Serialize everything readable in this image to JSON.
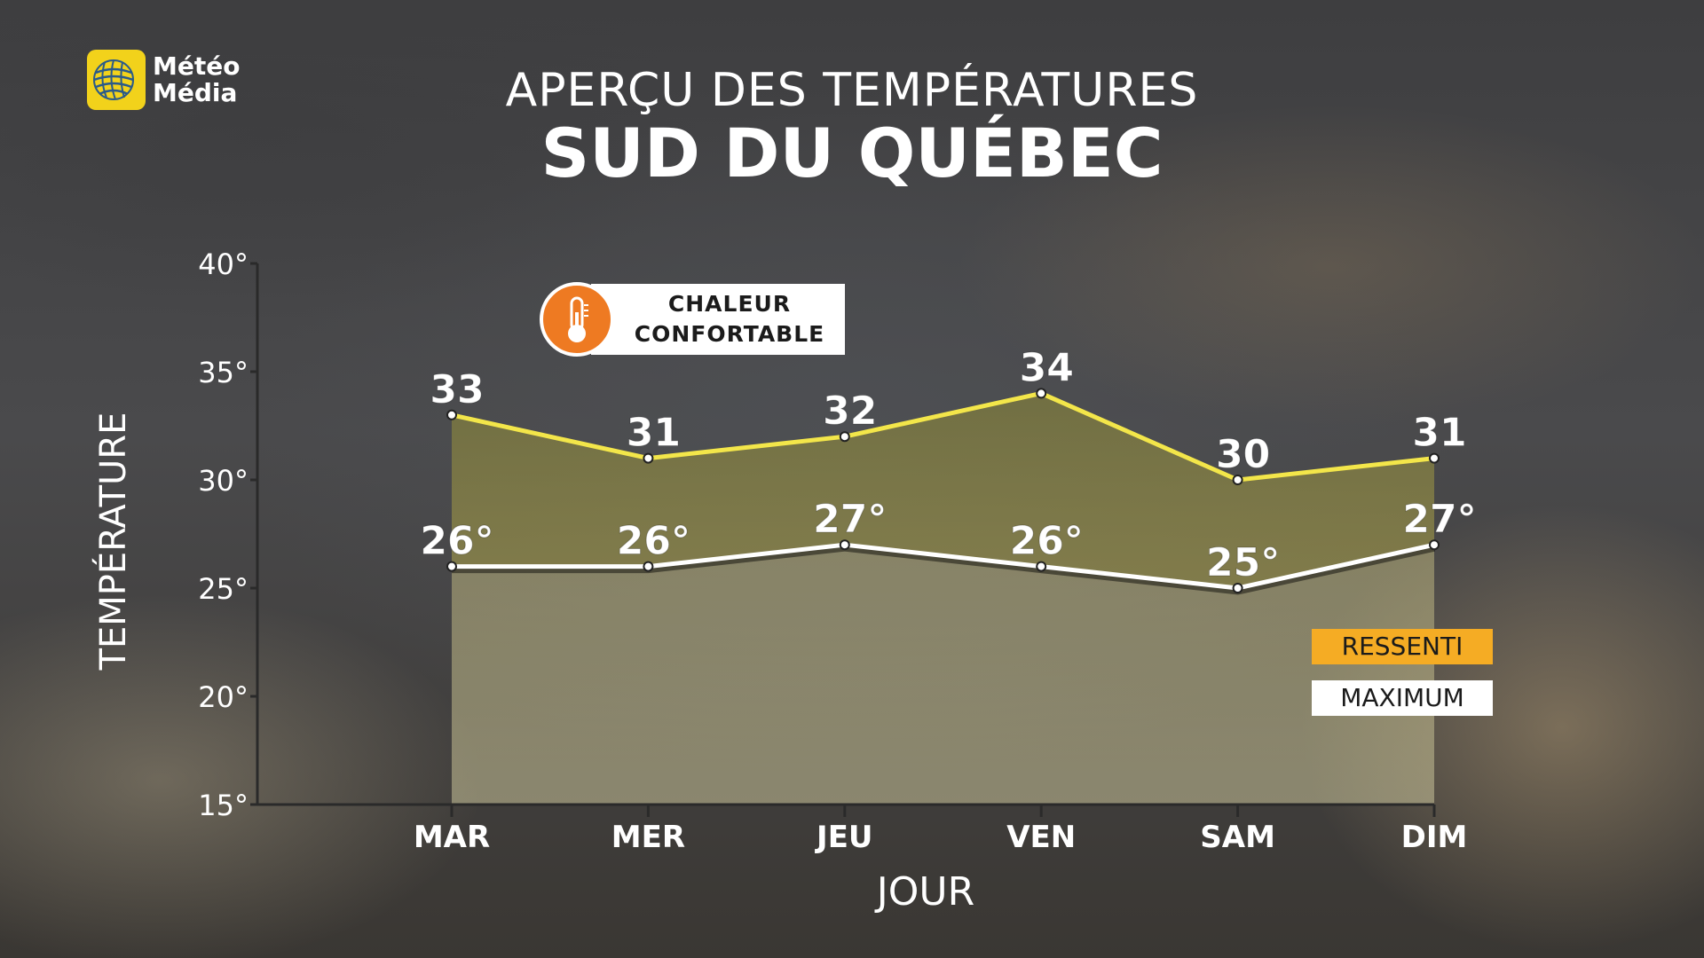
{
  "brand": {
    "logo_line1": "Météo",
    "logo_line2": "Média"
  },
  "header": {
    "title": "APERÇU DES TEMPÉRATURES",
    "subtitle": "SUD DU QUÉBEC"
  },
  "badge": {
    "line1": "CHALEUR",
    "line2": "CONFORTABLE",
    "icon": "thermometer-icon",
    "color": "#ee7a22"
  },
  "legend": {
    "ressenti": "RESSENTI",
    "maximum": "MAXIMUM",
    "ressenti_color": "#f5ac24",
    "maximum_color": "#ffffff"
  },
  "chart_data": {
    "type": "area",
    "xlabel": "JOUR",
    "ylabel": "TEMPÉRATURE",
    "categories": [
      "MAR",
      "MER",
      "JEU",
      "VEN",
      "SAM",
      "DIM"
    ],
    "ylim": [
      15,
      40
    ],
    "yticks": [
      "15°",
      "20°",
      "25°",
      "30°",
      "35°",
      "40°"
    ],
    "series": [
      {
        "name": "RESSENTI",
        "values": [
          33,
          31,
          32,
          34,
          30,
          31
        ],
        "labels": [
          "33",
          "31",
          "32",
          "34",
          "30",
          "31"
        ],
        "color": "#f3e64a"
      },
      {
        "name": "MAXIMUM",
        "values": [
          26,
          26,
          27,
          26,
          25,
          27
        ],
        "labels": [
          "26°",
          "26°",
          "27°",
          "26°",
          "25°",
          "27°"
        ],
        "color": "#ffffff"
      }
    ],
    "grid": false,
    "legend_position": "right"
  }
}
